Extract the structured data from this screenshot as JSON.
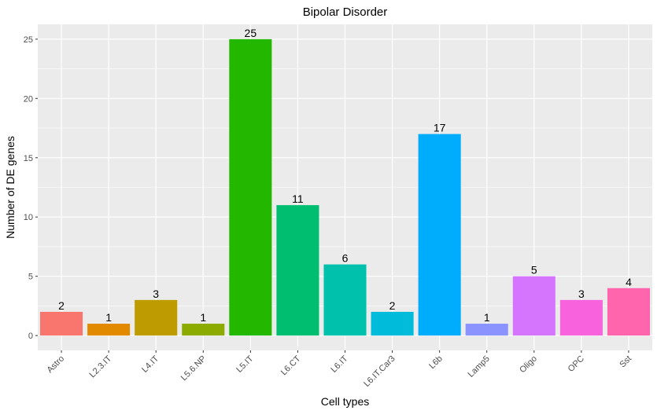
{
  "chart_data": {
    "type": "bar",
    "title": "Bipolar Disorder",
    "xlabel": "Cell types",
    "ylabel": "Number of DE genes",
    "categories": [
      "Astro",
      "L2.3.IT",
      "L4.IT",
      "L5.6.NP",
      "L5.IT",
      "L6.CT",
      "L6.IT",
      "L6.IT.Car3",
      "L6b",
      "Lamp5",
      "Oligo",
      "OPC",
      "Sst"
    ],
    "values": [
      2,
      1,
      3,
      1,
      25,
      11,
      6,
      2,
      17,
      1,
      5,
      3,
      4
    ],
    "data_labels": [
      "2",
      "1",
      "3",
      "1",
      "25",
      "11",
      "6",
      "2",
      "17",
      "1",
      "5",
      "3",
      "4"
    ],
    "colors": [
      "#F8766D",
      "#E18A00",
      "#BE9C00",
      "#8CAB00",
      "#24B700",
      "#00BE70",
      "#00C1AB",
      "#00BBDA",
      "#00ACFC",
      "#8B93FF",
      "#D575FE",
      "#F962DD",
      "#FF65AC"
    ],
    "yticks": [
      0,
      5,
      10,
      15,
      20,
      25
    ],
    "ylim": [
      -1.25,
      26.25
    ],
    "grid": true,
    "legend": "none",
    "panel_background": "#EBEBEB",
    "grid_color": "#FFFFFF"
  }
}
